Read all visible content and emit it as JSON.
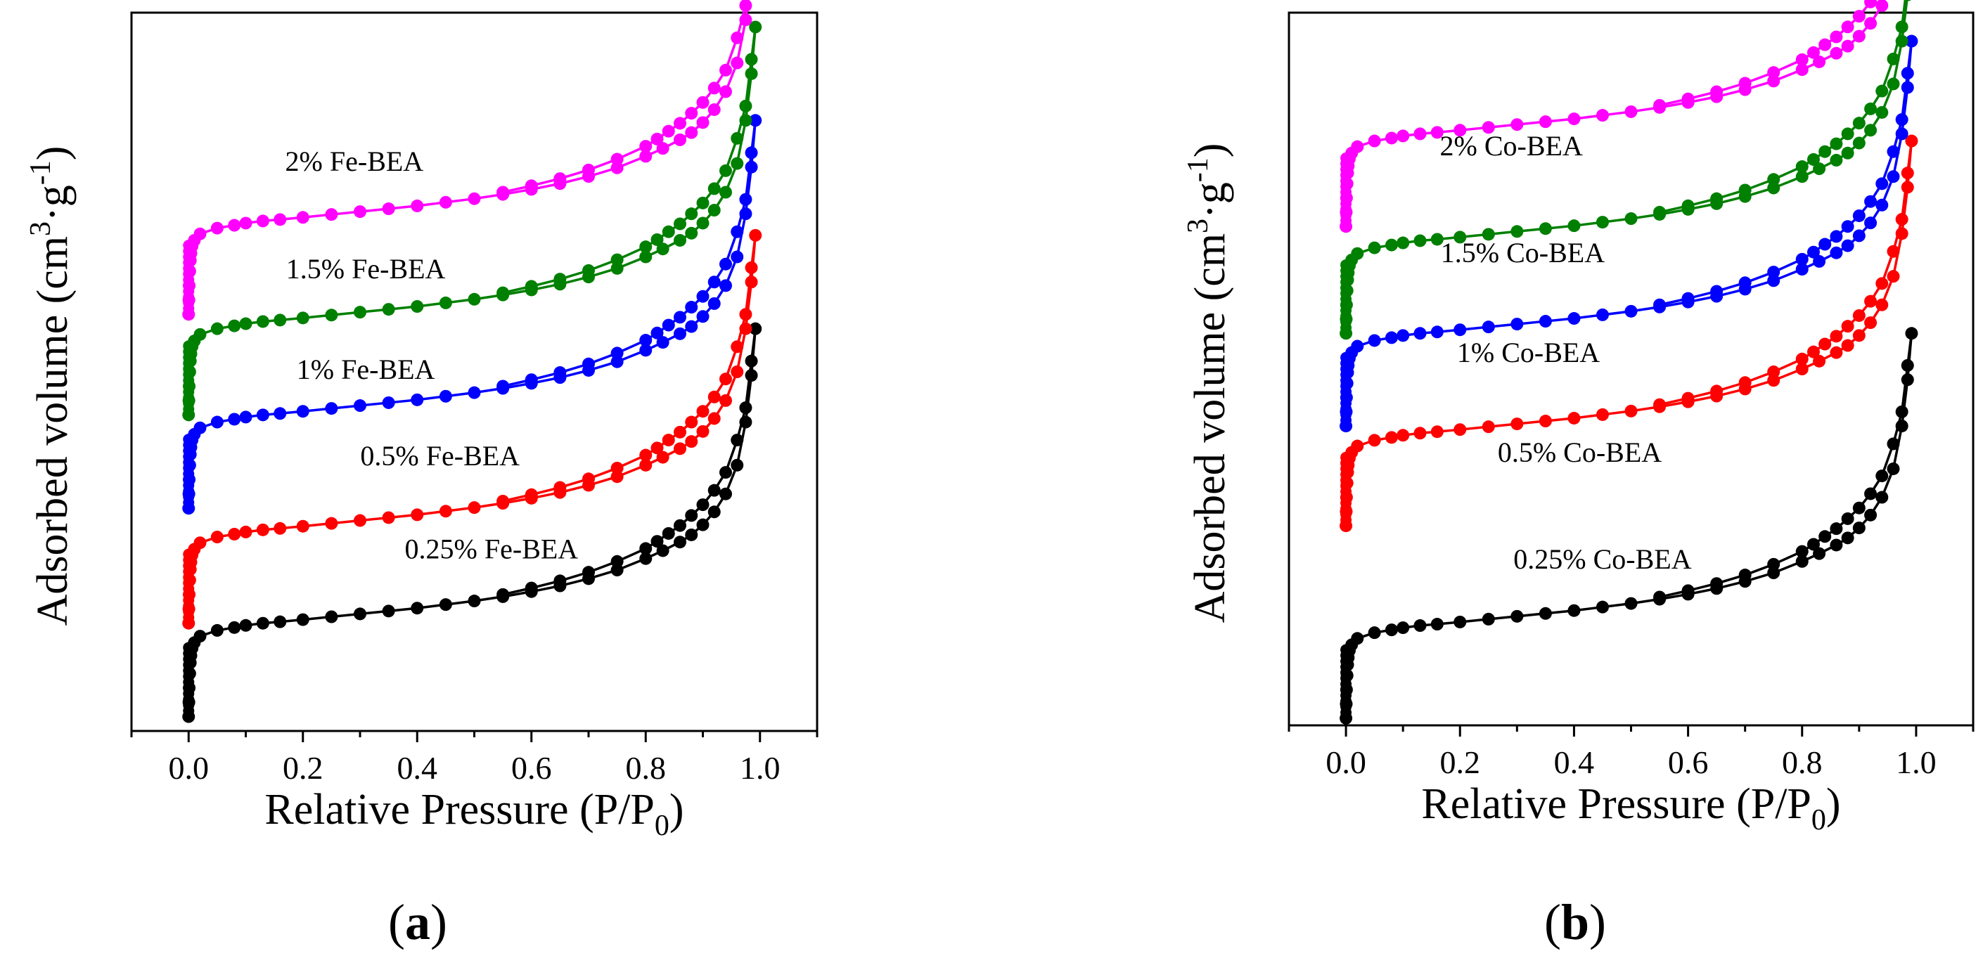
{
  "chart_data": [
    {
      "type": "line",
      "panel": "(a)",
      "panel_letter": "a",
      "xlabel": "Relative Pressure (P/P0)",
      "xlabel_main": "Relative Pressure (P/P",
      "xlabel_sub": "0",
      "xlabel_end": ")",
      "ylabel": "Adsorbed volume (cm3·g-1)",
      "ylabel_main": "Adsorbed volume (cm",
      "ylabel_sup1": "3",
      "ylabel_mid": "·g",
      "ylabel_sup2": "-1",
      "ylabel_end": ")",
      "xlim": [
        -0.1,
        1.1
      ],
      "ylim": [
        0,
        100
      ],
      "y_tick_labels": false,
      "xticks": [
        0.0,
        0.2,
        0.4,
        0.6,
        0.8,
        1.0
      ],
      "xtick_labels": [
        "0.0",
        "0.2",
        "0.4",
        "0.6",
        "0.8",
        "1.0"
      ],
      "legend": "labels above each curve",
      "series": [
        {
          "name": "0.25% Fe-BEA",
          "color": "#000000",
          "offset": 3,
          "label_x": 0.53,
          "label_y": 24
        },
        {
          "name": "0.5% Fe-BEA",
          "color": "#ff0000",
          "offset": 16,
          "label_x": 0.44,
          "label_y": 37
        },
        {
          "name": "1% Fe-BEA",
          "color": "#0000ff",
          "offset": 32,
          "label_x": 0.31,
          "label_y": 49
        },
        {
          "name": "1.5% Fe-BEA",
          "color": "#008000",
          "offset": 45,
          "label_x": 0.31,
          "label_y": 63
        },
        {
          "name": "2% Fe-BEA",
          "color": "#ff00ff",
          "offset": 59,
          "label_x": 0.29,
          "label_y": 78
        }
      ]
    },
    {
      "type": "line",
      "panel": "(b)",
      "panel_letter": "b",
      "xlabel": "Relative Pressure (P/P0)",
      "xlabel_main": "Relative Pressure (P/P",
      "xlabel_sub": "0",
      "xlabel_end": ")",
      "ylabel": "Adsorbed volume (cm3·g-1)",
      "ylabel_main": "Adsorbed volume (cm",
      "ylabel_sup1": "3",
      "ylabel_mid": "·g",
      "ylabel_sup2": "-1",
      "ylabel_end": ")",
      "xlim": [
        -0.1,
        1.1
      ],
      "ylim": [
        0,
        100
      ],
      "y_tick_labels": false,
      "xticks": [
        0.0,
        0.2,
        0.4,
        0.6,
        0.8,
        1.0
      ],
      "xtick_labels": [
        "0.0",
        "0.2",
        "0.4",
        "0.6",
        "0.8",
        "1.0"
      ],
      "legend": "labels above each curve",
      "series": [
        {
          "name": "0.25% Co-BEA",
          "color": "#000000",
          "offset": 2,
          "label_x": 0.45,
          "label_y": 22
        },
        {
          "name": "0.5% Co-BEA",
          "color": "#ff0000",
          "offset": 29,
          "label_x": 0.41,
          "label_y": 37
        },
        {
          "name": "1% Co-BEA",
          "color": "#0000ff",
          "offset": 43,
          "label_x": 0.32,
          "label_y": 51
        },
        {
          "name": "1.5% Co-BEA",
          "color": "#008000",
          "offset": 56,
          "label_x": 0.31,
          "label_y": 65
        },
        {
          "name": "2% Co-BEA",
          "color": "#ff00ff",
          "offset": 71,
          "label_x": 0.29,
          "label_y": 80
        }
      ]
    }
  ],
  "isotherm_shape": {
    "adsorption": [
      [
        0.0,
        -1
      ],
      [
        0.0005,
        1
      ],
      [
        0.001,
        3
      ],
      [
        0.002,
        5
      ],
      [
        0.003,
        6.5
      ],
      [
        0.004,
        7.5
      ],
      [
        0.006,
        8.5
      ],
      [
        0.01,
        9.3
      ],
      [
        0.02,
        10.2
      ],
      [
        0.05,
        11.0
      ],
      [
        0.08,
        11.4
      ],
      [
        0.1,
        11.7
      ],
      [
        0.13,
        12.0
      ],
      [
        0.16,
        12.2
      ],
      [
        0.2,
        12.5
      ],
      [
        0.25,
        12.9
      ],
      [
        0.3,
        13.3
      ],
      [
        0.35,
        13.7
      ],
      [
        0.4,
        14.1
      ],
      [
        0.45,
        14.6
      ],
      [
        0.5,
        15.1
      ],
      [
        0.55,
        15.7
      ],
      [
        0.6,
        16.4
      ],
      [
        0.65,
        17.2
      ],
      [
        0.7,
        18.2
      ],
      [
        0.75,
        19.4
      ],
      [
        0.8,
        21.0
      ],
      [
        0.83,
        22.1
      ],
      [
        0.86,
        23.3
      ],
      [
        0.88,
        24.3
      ],
      [
        0.9,
        25.7
      ],
      [
        0.92,
        27.5
      ],
      [
        0.94,
        30.0
      ],
      [
        0.96,
        34.0
      ],
      [
        0.975,
        40.0
      ],
      [
        0.985,
        46.5
      ],
      [
        0.992,
        53.0
      ]
    ],
    "desorption": [
      [
        0.992,
        53.0
      ],
      [
        0.985,
        48.5
      ],
      [
        0.975,
        42.0
      ],
      [
        0.96,
        37.5
      ],
      [
        0.94,
        33.0
      ],
      [
        0.92,
        30.5
      ],
      [
        0.9,
        28.5
      ],
      [
        0.88,
        27.0
      ],
      [
        0.86,
        25.6
      ],
      [
        0.84,
        24.5
      ],
      [
        0.82,
        23.4
      ],
      [
        0.8,
        22.4
      ],
      [
        0.75,
        20.6
      ],
      [
        0.7,
        19.1
      ],
      [
        0.65,
        17.9
      ],
      [
        0.6,
        16.9
      ],
      [
        0.55,
        16.0
      ]
    ]
  }
}
